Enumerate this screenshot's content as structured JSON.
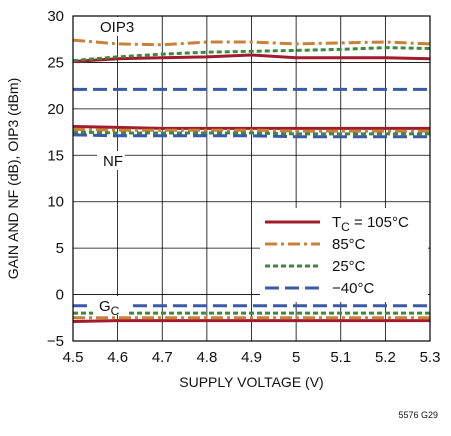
{
  "chart_data": {
    "type": "line",
    "title": "",
    "xlabel": "SUPPLY VOLTAGE (V)",
    "ylabel": "GAIN AND NF (dB), OIP3 (dBm)",
    "xlim": [
      4.5,
      5.3
    ],
    "ylim": [
      -5,
      30
    ],
    "xticks": [
      "4.5",
      "4.6",
      "4.7",
      "4.8",
      "4.9",
      "5",
      "5.1",
      "5.2",
      "5.3"
    ],
    "yticks": [
      "30",
      "25",
      "20",
      "15",
      "10",
      "5",
      "0",
      "−5"
    ],
    "grid": true,
    "legend_position": "lower-right",
    "x": [
      4.5,
      4.6,
      4.7,
      4.8,
      4.9,
      5.0,
      5.1,
      5.2,
      5.3
    ],
    "annotations": [
      {
        "text": "OIP3"
      },
      {
        "text": "NF"
      },
      {
        "text": "G",
        "sub": "C"
      }
    ],
    "figure_id": "5576 G29",
    "legend": [
      {
        "label": "T",
        "sub": "C",
        "suffix": " = 105°C",
        "color": "#a01c2c",
        "dash": "solid"
      },
      {
        "label": "85°C",
        "color": "#c8803a",
        "dash": "dashdot"
      },
      {
        "label": "25°C",
        "color": "#3c8a3c",
        "dash": "dotted"
      },
      {
        "label": "−40°C",
        "color": "#3a5aa8",
        "dash": "dashed"
      }
    ],
    "series": [
      {
        "group": "OIP3",
        "temp": "105°C",
        "color": "#a01c2c",
        "dash": "solid",
        "values": [
          25.1,
          25.4,
          25.5,
          25.6,
          25.8,
          25.5,
          25.5,
          25.5,
          25.4
        ]
      },
      {
        "group": "OIP3",
        "temp": "85°C",
        "color": "#c8803a",
        "dash": "dashdot",
        "values": [
          27.4,
          27.0,
          26.9,
          27.2,
          27.2,
          27.0,
          27.1,
          27.2,
          27.0
        ]
      },
      {
        "group": "OIP3",
        "temp": "25°C",
        "color": "#3c8a3c",
        "dash": "dotted",
        "values": [
          25.2,
          25.6,
          25.9,
          26.1,
          26.2,
          26.3,
          26.4,
          26.6,
          26.5
        ]
      },
      {
        "group": "OIP3",
        "temp": "−40°C",
        "color": "#3a5aa8",
        "dash": "dashed",
        "values": [
          22.1,
          22.1,
          22.1,
          22.1,
          22.1,
          22.1,
          22.1,
          22.1,
          22.1
        ]
      },
      {
        "group": "NF",
        "temp": "105°C",
        "color": "#a01c2c",
        "dash": "solid",
        "values": [
          18.1,
          18.0,
          17.9,
          17.9,
          17.9,
          17.9,
          17.9,
          17.9,
          17.9
        ]
      },
      {
        "group": "NF",
        "temp": "85°C",
        "color": "#c8803a",
        "dash": "dashdot",
        "values": [
          17.8,
          17.7,
          17.7,
          17.7,
          17.7,
          17.6,
          17.6,
          17.6,
          17.6
        ]
      },
      {
        "group": "NF",
        "temp": "25°C",
        "color": "#3c8a3c",
        "dash": "dotted",
        "values": [
          17.5,
          17.4,
          17.4,
          17.4,
          17.4,
          17.3,
          17.3,
          17.3,
          17.3
        ]
      },
      {
        "group": "NF",
        "temp": "−40°C",
        "color": "#3a5aa8",
        "dash": "dashed",
        "values": [
          17.2,
          17.1,
          17.1,
          17.1,
          17.1,
          17.0,
          17.0,
          17.0,
          17.0
        ]
      },
      {
        "group": "GC",
        "temp": "105°C",
        "color": "#a01c2c",
        "dash": "solid",
        "values": [
          -2.9,
          -2.8,
          -2.8,
          -2.8,
          -2.8,
          -2.8,
          -2.8,
          -2.8,
          -2.8
        ]
      },
      {
        "group": "GC",
        "temp": "85°C",
        "color": "#c8803a",
        "dash": "dashdot",
        "values": [
          -2.5,
          -2.5,
          -2.5,
          -2.5,
          -2.5,
          -2.5,
          -2.5,
          -2.5,
          -2.5
        ]
      },
      {
        "group": "GC",
        "temp": "25°C",
        "color": "#3c8a3c",
        "dash": "dotted",
        "values": [
          -2.0,
          -2.0,
          -2.0,
          -2.0,
          -2.0,
          -2.0,
          -2.0,
          -2.0,
          -2.0
        ]
      },
      {
        "group": "GC",
        "temp": "−40°C",
        "color": "#3a5aa8",
        "dash": "dashed",
        "values": [
          -1.2,
          -1.2,
          -1.2,
          -1.2,
          -1.2,
          -1.2,
          -1.2,
          -1.2,
          -1.2
        ]
      }
    ]
  }
}
